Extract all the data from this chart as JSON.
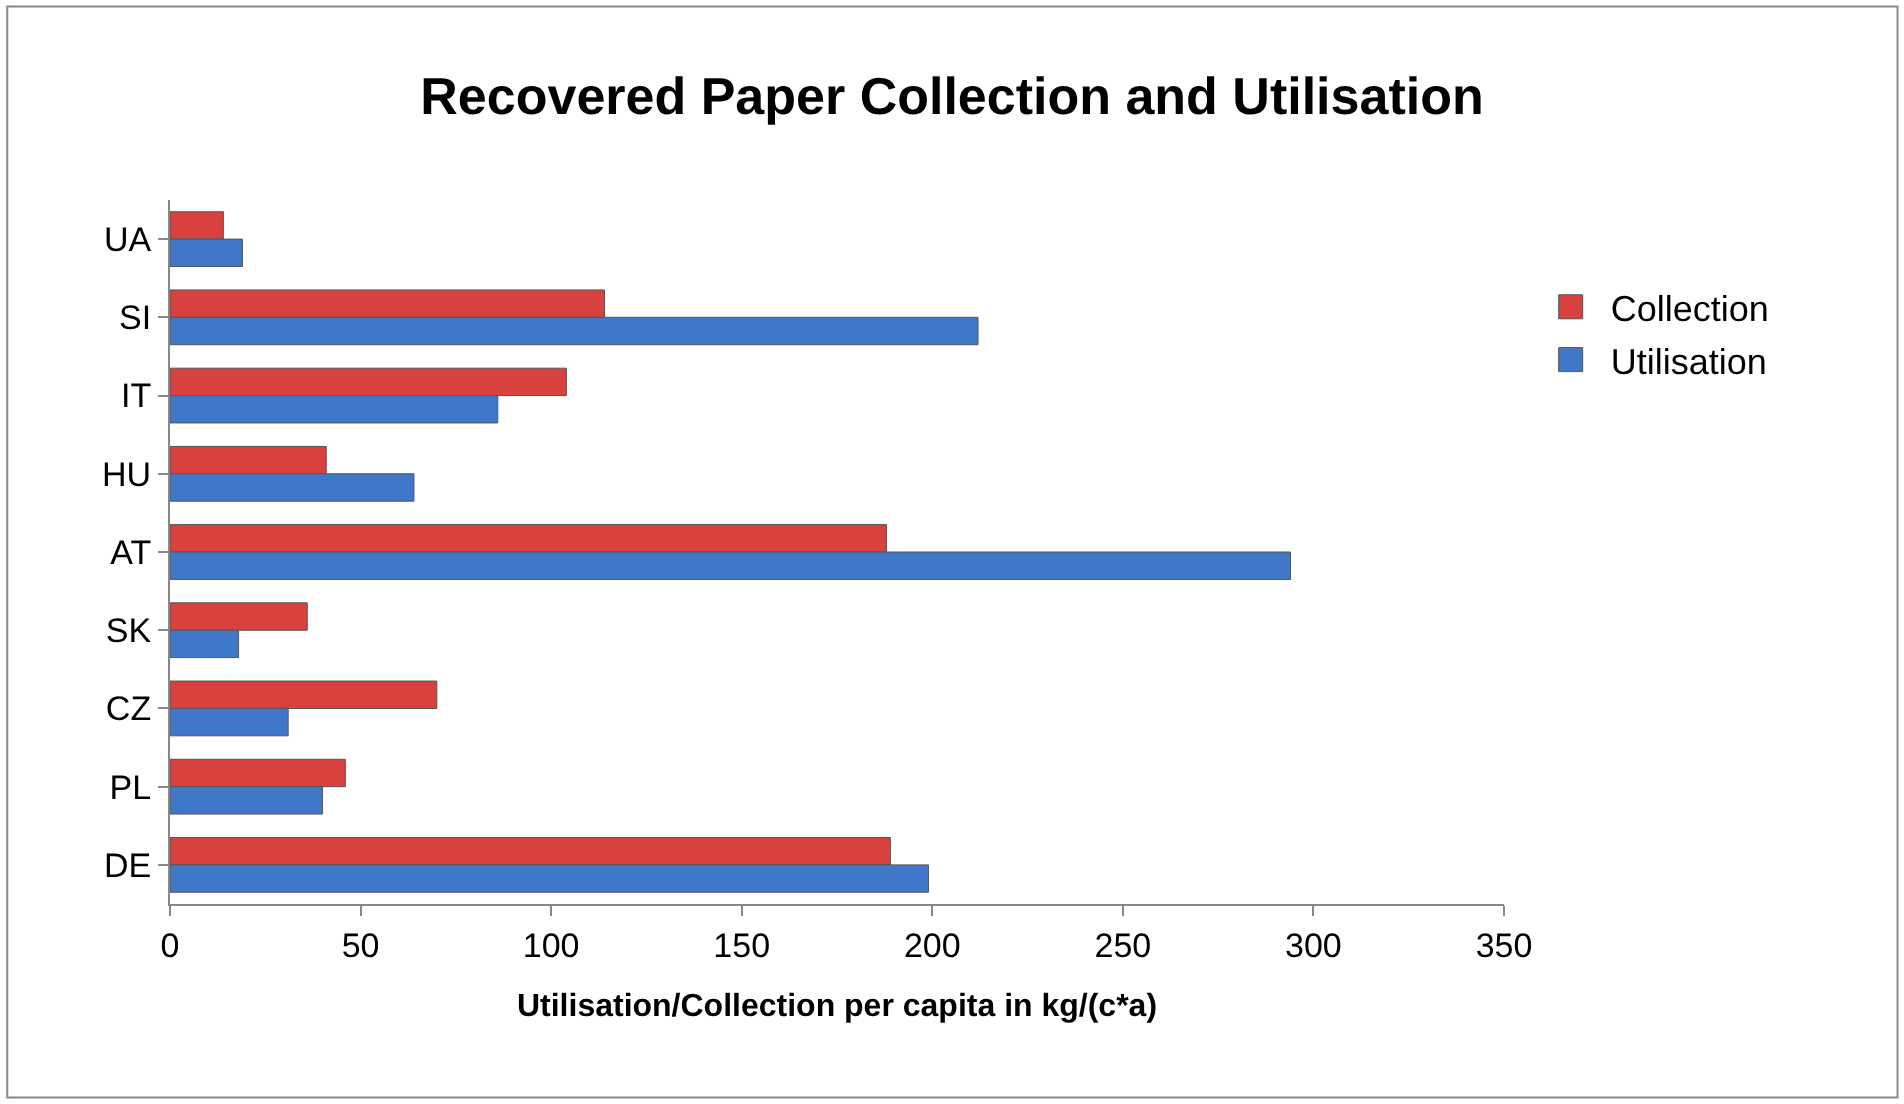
{
  "chart_data": {
    "type": "bar",
    "orientation": "horizontal",
    "title": "Recovered Paper Collection and Utilisation",
    "xlabel": "Utilisation/Collection per capita in kg/(c*a)",
    "categories": [
      "UA",
      "SI",
      "IT",
      "HU",
      "AT",
      "SK",
      "CZ",
      "PL",
      "DE"
    ],
    "series": [
      {
        "name": "Collection",
        "color": "#d9413f",
        "values": [
          14,
          114,
          104,
          41,
          188,
          36,
          70,
          46,
          189
        ]
      },
      {
        "name": "Utilisation",
        "color": "#3f78c8",
        "values": [
          19,
          212,
          86,
          64,
          294,
          18,
          31,
          40,
          199
        ]
      }
    ],
    "xlim": [
      0,
      350
    ],
    "xticks": [
      0,
      50,
      100,
      150,
      200,
      250,
      300,
      350
    ],
    "legend": "right"
  }
}
